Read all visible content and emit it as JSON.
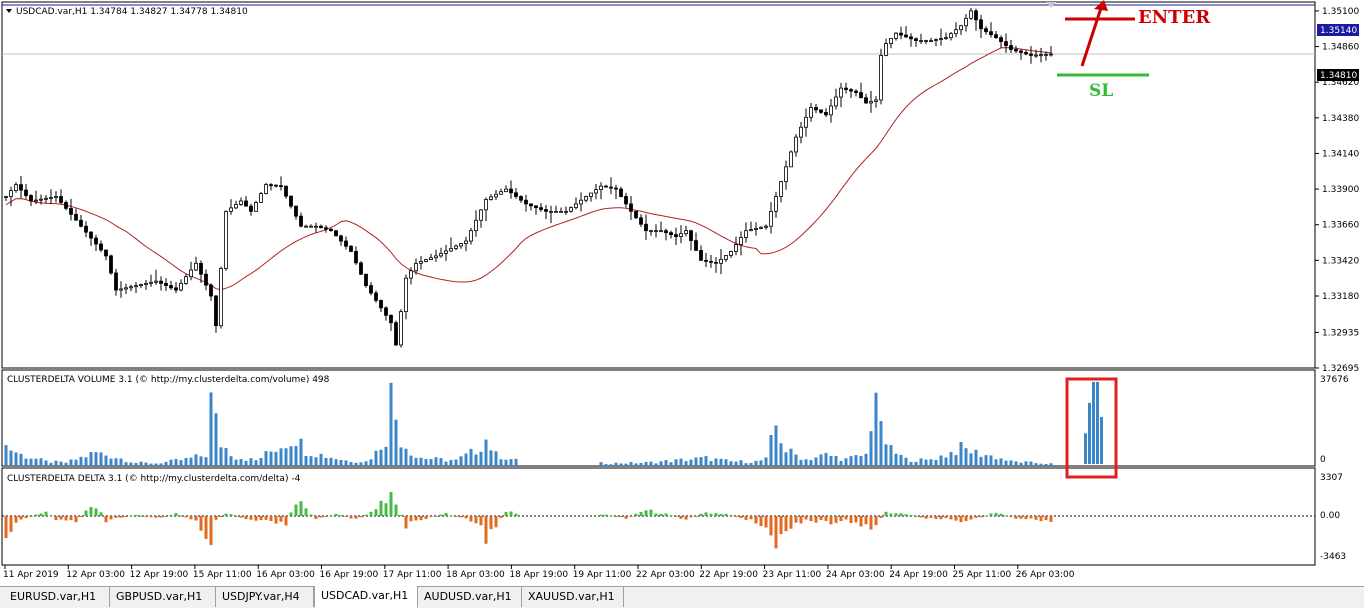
{
  "window": {
    "symbol_header": "USDCAD.var,H1  1.34784 1.34827 1.34778 1.34810"
  },
  "price_panel": {
    "axis_ticks": [
      "1.35100",
      "1.34860",
      "1.34620",
      "1.34380",
      "1.34140",
      "1.33900",
      "1.33660",
      "1.33420",
      "1.33180",
      "1.32935",
      "1.32695"
    ],
    "level_label": "1.35140",
    "current_price_label": "1.34810",
    "annotation_enter": "ENTER",
    "annotation_sl": "SL",
    "colors": {
      "enter": "#cc0000",
      "sl": "#33bb33",
      "ma": "#b22222",
      "level": "#1a1aa0"
    }
  },
  "volume_panel": {
    "title": "CLUSTERDELTA VOLUME 3.1 (© http://my.clusterdelta.com/volume) 498",
    "axis_max": "37676",
    "axis_min": "0",
    "color": "#3b86c8",
    "highlight_color": "#e02020"
  },
  "delta_panel": {
    "title": "CLUSTERDELTA DELTA 3.1 (© http://my.clusterdelta.com/delta) -4",
    "axis_max": "3307",
    "axis_zero": "0.00",
    "axis_min": "-3463",
    "positive_color": "#44bb44",
    "negative_color": "#e06a20"
  },
  "time_axis": [
    "11 Apr 2019",
    "12 Apr 03:00",
    "12 Apr 19:00",
    "15 Apr 11:00",
    "16 Apr 03:00",
    "16 Apr 19:00",
    "17 Apr 11:00",
    "18 Apr 03:00",
    "18 Apr 19:00",
    "19 Apr 11:00",
    "22 Apr 03:00",
    "22 Apr 19:00",
    "23 Apr 11:00",
    "24 Apr 03:00",
    "24 Apr 19:00",
    "25 Apr 11:00",
    "26 Apr 03:00"
  ],
  "tabs": [
    {
      "label": "EURUSD.var,H1",
      "active": false
    },
    {
      "label": "GBPUSD.var,H1",
      "active": false
    },
    {
      "label": "USDJPY.var,H4",
      "active": false
    },
    {
      "label": "USDCAD.var,H1",
      "active": true
    },
    {
      "label": "AUDUSD.var,H1",
      "active": false
    },
    {
      "label": "XAUUSD.var,H1",
      "active": false
    }
  ],
  "chart_data": [
    {
      "type": "line",
      "name": "USDCAD H1 price",
      "ylim": [
        1.32695,
        1.3516
      ],
      "anchors": [
        [
          0,
          1.3385
        ],
        [
          2,
          1.3393
        ],
        [
          5,
          1.3382
        ],
        [
          10,
          1.3385
        ],
        [
          15,
          1.3365
        ],
        [
          20,
          1.3345
        ],
        [
          22,
          1.3322
        ],
        [
          26,
          1.3325
        ],
        [
          30,
          1.3328
        ],
        [
          34,
          1.3322
        ],
        [
          38,
          1.334
        ],
        [
          41,
          1.3318
        ],
        [
          42,
          1.3298
        ],
        [
          44,
          1.3375
        ],
        [
          47,
          1.3382
        ],
        [
          49,
          1.3375
        ],
        [
          52,
          1.3393
        ],
        [
          55,
          1.3392
        ],
        [
          59,
          1.3365
        ],
        [
          62,
          1.3365
        ],
        [
          65,
          1.3362
        ],
        [
          69,
          1.3348
        ],
        [
          72,
          1.3325
        ],
        [
          77,
          1.33
        ],
        [
          78,
          1.3285
        ],
        [
          80,
          1.333
        ],
        [
          82,
          1.334
        ],
        [
          86,
          1.3345
        ],
        [
          89,
          1.335
        ],
        [
          92,
          1.3355
        ],
        [
          96,
          1.3383
        ],
        [
          100,
          1.339
        ],
        [
          104,
          1.338
        ],
        [
          108,
          1.3375
        ],
        [
          112,
          1.3375
        ],
        [
          116,
          1.3385
        ],
        [
          119,
          1.3392
        ],
        [
          122,
          1.339
        ],
        [
          125,
          1.3375
        ],
        [
          128,
          1.3362
        ],
        [
          131,
          1.3362
        ],
        [
          134,
          1.3358
        ],
        [
          136,
          1.3362
        ],
        [
          139,
          1.3342
        ],
        [
          142,
          1.334
        ],
        [
          145,
          1.3348
        ],
        [
          148,
          1.3362
        ],
        [
          152,
          1.3365
        ],
        [
          155,
          1.3395
        ],
        [
          158,
          1.3425
        ],
        [
          161,
          1.3445
        ],
        [
          164,
          1.344
        ],
        [
          167,
          1.3458
        ],
        [
          170,
          1.3455
        ],
        [
          172,
          1.3448
        ],
        [
          174,
          1.345
        ],
        [
          175,
          1.348
        ],
        [
          176,
          1.3488
        ],
        [
          178,
          1.3495
        ],
        [
          182,
          1.349
        ],
        [
          185,
          1.349
        ],
        [
          188,
          1.3492
        ],
        [
          191,
          1.35
        ],
        [
          193,
          1.351
        ],
        [
          195,
          1.3498
        ],
        [
          198,
          1.3492
        ],
        [
          201,
          1.3484
        ],
        [
          205,
          1.348
        ],
        [
          209,
          1.3481
        ]
      ]
    },
    {
      "type": "bar",
      "name": "CLUSTERDELTA VOLUME",
      "ylim": [
        0,
        37676
      ],
      "anchors": [
        [
          0,
          9000
        ],
        [
          3,
          5000
        ],
        [
          8,
          2000
        ],
        [
          12,
          1500
        ],
        [
          18,
          6000
        ],
        [
          22,
          4000
        ],
        [
          26,
          1500
        ],
        [
          30,
          1200
        ],
        [
          36,
          3000
        ],
        [
          40,
          5000
        ],
        [
          41,
          29000
        ],
        [
          43,
          10000
        ],
        [
          46,
          4000
        ],
        [
          50,
          2500
        ],
        [
          54,
          8000
        ],
        [
          58,
          13000
        ],
        [
          60,
          7000
        ],
        [
          64,
          4500
        ],
        [
          68,
          2500
        ],
        [
          72,
          2000
        ],
        [
          74,
          6000
        ],
        [
          76,
          13000
        ],
        [
          77,
          32000
        ],
        [
          79,
          12000
        ],
        [
          82,
          4000
        ],
        [
          86,
          3000
        ],
        [
          90,
          2500
        ],
        [
          94,
          7000
        ],
        [
          96,
          12000
        ],
        [
          98,
          5000
        ],
        [
          102,
          2500
        ],
        [
          120,
          1200
        ],
        [
          128,
          1500
        ],
        [
          134,
          2500
        ],
        [
          140,
          3500
        ],
        [
          145,
          2000
        ],
        [
          150,
          2000
        ],
        [
          152,
          3000
        ],
        [
          154,
          18000
        ],
        [
          156,
          7000
        ],
        [
          160,
          3000
        ],
        [
          164,
          5000
        ],
        [
          168,
          3000
        ],
        [
          172,
          5000
        ],
        [
          174,
          36000
        ],
        [
          175,
          15000
        ],
        [
          177,
          7000
        ],
        [
          180,
          3000
        ],
        [
          184,
          2500
        ],
        [
          188,
          5000
        ],
        [
          191,
          8000
        ],
        [
          194,
          6000
        ],
        [
          198,
          4000
        ],
        [
          201,
          2000
        ],
        [
          205,
          1500
        ],
        [
          209,
          1000
        ]
      ]
    },
    {
      "type": "bar",
      "name": "CLUSTERDELTA DELTA",
      "ylim": [
        -3463,
        3307
      ],
      "anchors": [
        [
          0,
          -1800
        ],
        [
          2,
          -600
        ],
        [
          6,
          200
        ],
        [
          8,
          400
        ],
        [
          10,
          -300
        ],
        [
          14,
          -500
        ],
        [
          17,
          800
        ],
        [
          19,
          300
        ],
        [
          20,
          -400
        ],
        [
          22,
          -200
        ],
        [
          26,
          100
        ],
        [
          30,
          -200
        ],
        [
          34,
          200
        ],
        [
          38,
          -500
        ],
        [
          40,
          -2800
        ],
        [
          41,
          -2000
        ],
        [
          42,
          -500
        ],
        [
          44,
          300
        ],
        [
          48,
          -300
        ],
        [
          52,
          -500
        ],
        [
          54,
          -600
        ],
        [
          56,
          -700
        ],
        [
          58,
          1500
        ],
        [
          60,
          700
        ],
        [
          62,
          -300
        ],
        [
          66,
          200
        ],
        [
          70,
          -300
        ],
        [
          74,
          500
        ],
        [
          76,
          1500
        ],
        [
          77,
          3100
        ],
        [
          78,
          1000
        ],
        [
          80,
          -800
        ],
        [
          84,
          -200
        ],
        [
          88,
          200
        ],
        [
          92,
          -300
        ],
        [
          95,
          -800
        ],
        [
          96,
          -1800
        ],
        [
          97,
          -1200
        ],
        [
          98,
          -700
        ],
        [
          100,
          300
        ],
        [
          120,
          100
        ],
        [
          124,
          -200
        ],
        [
          128,
          500
        ],
        [
          132,
          200
        ],
        [
          136,
          -300
        ],
        [
          140,
          300
        ],
        [
          144,
          200
        ],
        [
          148,
          -300
        ],
        [
          152,
          -800
        ],
        [
          154,
          -2500
        ],
        [
          155,
          -2000
        ],
        [
          157,
          -800
        ],
        [
          160,
          -300
        ],
        [
          164,
          -600
        ],
        [
          168,
          -400
        ],
        [
          172,
          -1000
        ],
        [
          174,
          -700
        ],
        [
          176,
          300
        ],
        [
          180,
          200
        ],
        [
          184,
          -200
        ],
        [
          188,
          -200
        ],
        [
          190,
          -500
        ],
        [
          194,
          -200
        ],
        [
          198,
          300
        ],
        [
          202,
          -200
        ],
        [
          205,
          -300
        ],
        [
          209,
          -400
        ]
      ]
    }
  ]
}
